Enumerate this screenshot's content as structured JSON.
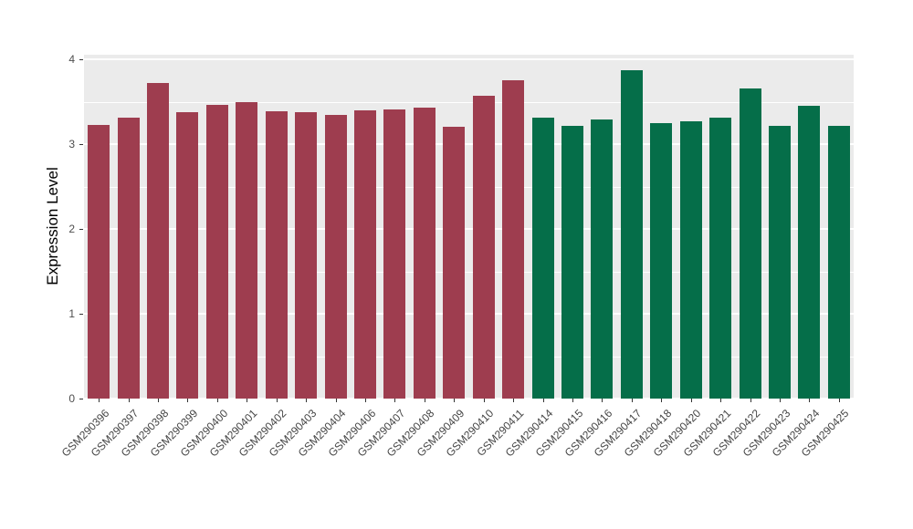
{
  "chart_data": {
    "type": "bar",
    "title": "",
    "xlabel": "",
    "ylabel": "Expression Level",
    "ylim": [
      0,
      4
    ],
    "yticks": [
      0,
      1,
      2,
      3,
      4
    ],
    "minor_gridlines": [
      0.5,
      1.5,
      2.5,
      3.5
    ],
    "grid": true,
    "legend_position": "none",
    "panel_bg": "#EBEBEB",
    "grid_color": "#FFFFFF",
    "categories": [
      "GSM290396",
      "GSM290397",
      "GSM290398",
      "GSM290399",
      "GSM290400",
      "GSM290401",
      "GSM290402",
      "GSM290403",
      "GSM290404",
      "GSM290406",
      "GSM290407",
      "GSM290408",
      "GSM290409",
      "GSM290410",
      "GSM290411",
      "GSM290414",
      "GSM290415",
      "GSM290416",
      "GSM290417",
      "GSM290418",
      "GSM290420",
      "GSM290421",
      "GSM290422",
      "GSM290423",
      "GSM290424",
      "GSM290425"
    ],
    "values": [
      3.23,
      3.31,
      3.72,
      3.38,
      3.46,
      3.5,
      3.39,
      3.38,
      3.34,
      3.4,
      3.41,
      3.43,
      3.2,
      3.57,
      3.75,
      3.31,
      3.22,
      3.29,
      3.87,
      3.25,
      3.27,
      3.31,
      3.66,
      3.22,
      3.45,
      3.21
    ],
    "groups": [
      "group1",
      "group1",
      "group1",
      "group1",
      "group1",
      "group1",
      "group1",
      "group1",
      "group1",
      "group1",
      "group1",
      "group1",
      "group1",
      "group1",
      "group1",
      "group2",
      "group2",
      "group2",
      "group2",
      "group2",
      "group2",
      "group2",
      "group2",
      "group2",
      "group2",
      "group2"
    ],
    "group_colors": {
      "group1": "#9E3D4F",
      "group2": "#056E49"
    }
  }
}
